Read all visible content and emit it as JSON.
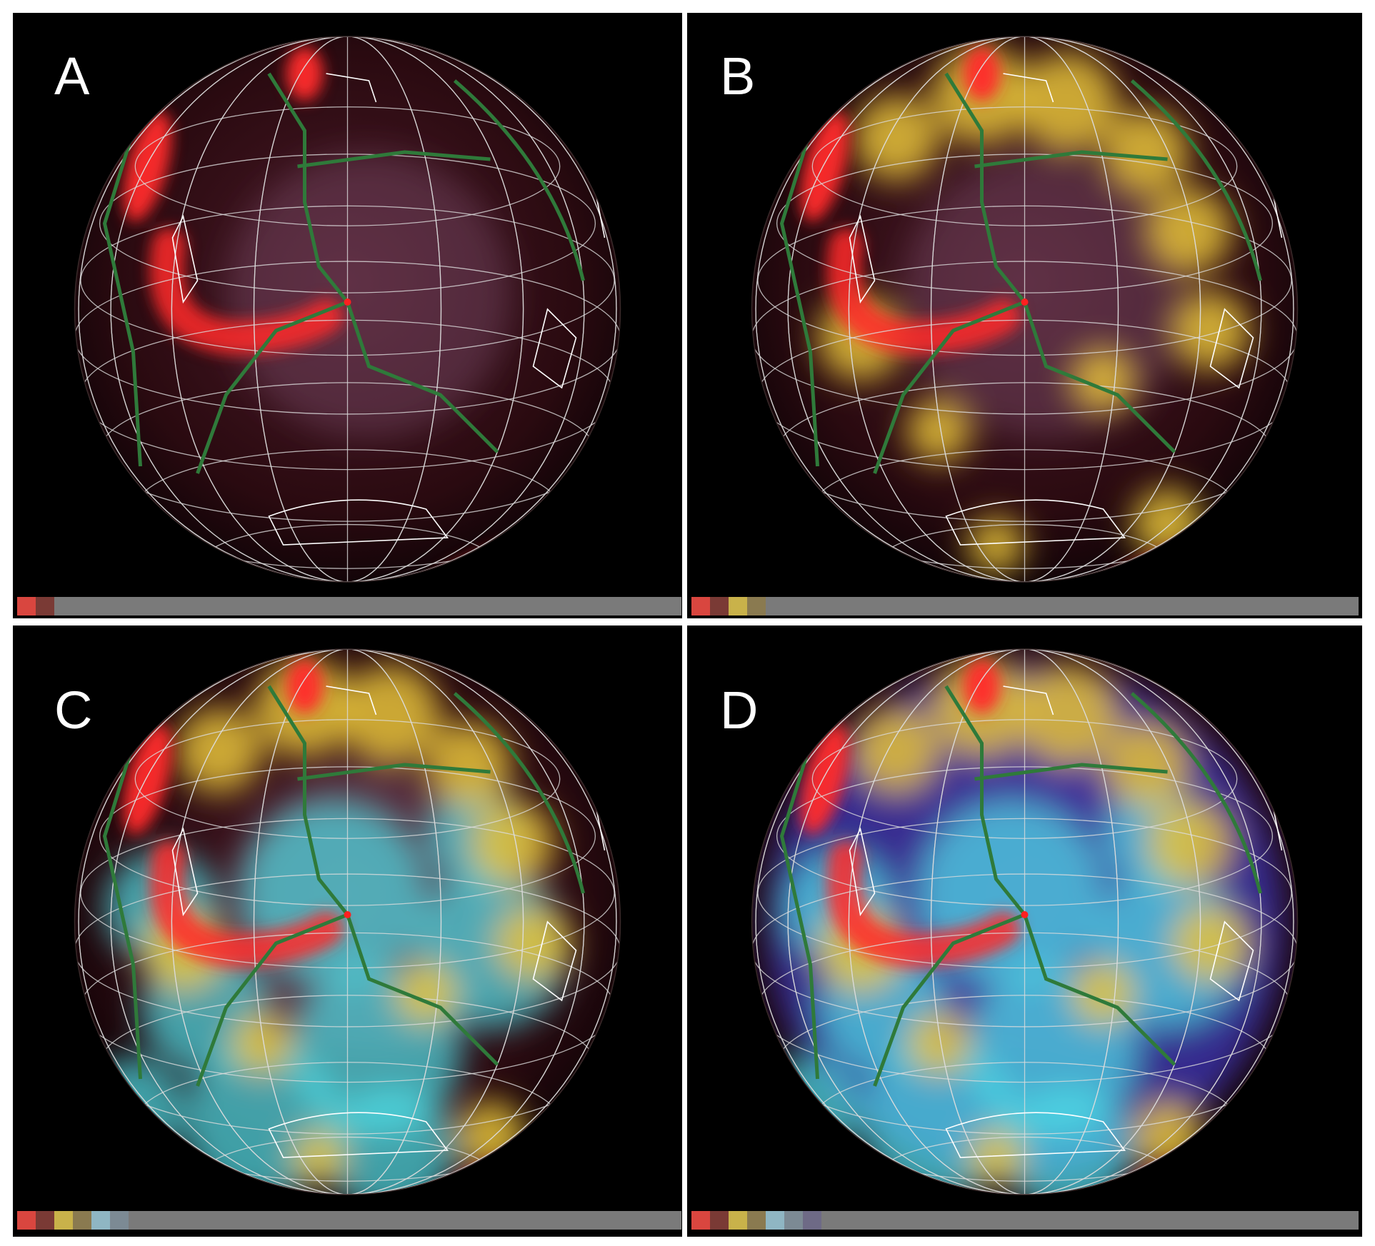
{
  "panels": [
    {
      "label": "A",
      "colorbar": [
        "#d9463f",
        "#7a3a35"
      ]
    },
    {
      "label": "B",
      "colorbar": [
        "#d9463f",
        "#7a3a35",
        "#c9b24a",
        "#8a7a50"
      ]
    },
    {
      "label": "C",
      "colorbar": [
        "#d9463f",
        "#7a3a35",
        "#c9b24a",
        "#8a7a50",
        "#8fb6c3",
        "#7c8a94"
      ]
    },
    {
      "label": "D",
      "colorbar": [
        "#d9463f",
        "#7a3a35",
        "#c9b24a",
        "#8a7a50",
        "#8fb6c3",
        "#7c8a94",
        "#6e6a86"
      ]
    }
  ],
  "colors": {
    "background": "#000000",
    "grid": "#dcdcdc",
    "plate_boundaries": "#2f7a3a",
    "coastlines": "#ffffff",
    "anomaly_strong": "#ff2a2a",
    "anomaly_medium": "#e6c23a",
    "anomaly_weak": "#4fe0e8",
    "anomaly_deep": "#3b36b8"
  }
}
